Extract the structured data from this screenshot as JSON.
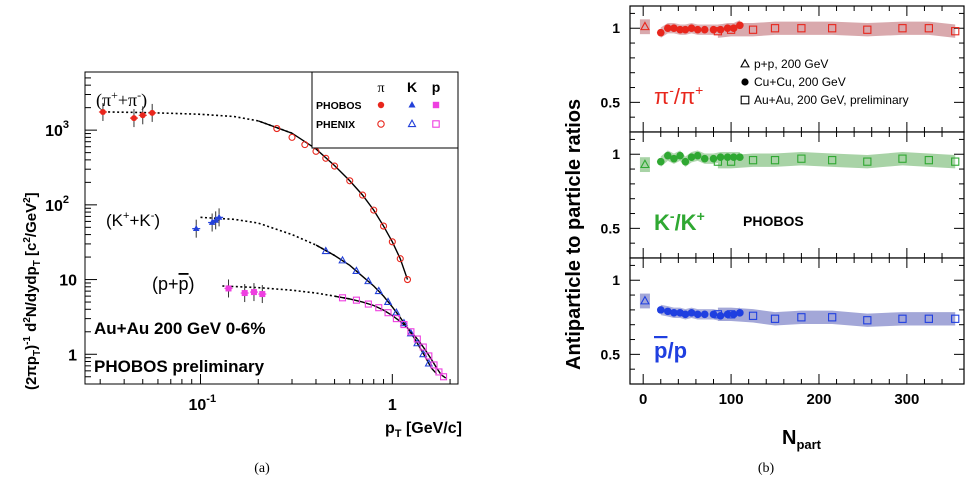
{
  "caption_a": "(a)",
  "caption_b": "(b)",
  "chart_data": [
    {
      "type": "scatter",
      "xscale": "log",
      "yscale": "log",
      "xlim": [
        0.025,
        2.2
      ],
      "ylim": [
        0.4,
        6000
      ],
      "xlabel": "p_T [GeV/c]",
      "ylabel": "(2πp_T)^-1 d²N/dydp_T [c²/GeV²]",
      "xticks": [
        "10^-1",
        "1"
      ],
      "yticks": [
        "1",
        "10",
        "10^2",
        "10^3"
      ],
      "annotations": [
        "Au+Au 200 GeV  0-6%",
        "PHOBOS preliminary"
      ],
      "curve_labels": [
        "(π⁺+π⁻)",
        "(K⁺+K⁻)",
        "(p+p̄)"
      ],
      "legend": {
        "columns": [
          "π",
          "K",
          "p"
        ],
        "rows": [
          "PHOBOS",
          "PHENIX"
        ],
        "placement": "top-right"
      },
      "colors": {
        "pion": "#e8261c",
        "kaon": "#2340d9",
        "proton": "#ee3fe0"
      },
      "series": [
        {
          "name": "PHOBOS π",
          "marker": "filled-circle",
          "color": "#e8261c",
          "points": [
            [
              0.031,
              1750
            ],
            [
              0.045,
              1450
            ],
            [
              0.05,
              1580
            ],
            [
              0.056,
              1700
            ]
          ]
        },
        {
          "name": "PHOBOS K",
          "marker": "filled-triangle",
          "color": "#2340d9",
          "points": [
            [
              0.095,
              48
            ],
            [
              0.115,
              58
            ],
            [
              0.12,
              62
            ],
            [
              0.125,
              68
            ]
          ]
        },
        {
          "name": "PHOBOS p",
          "marker": "filled-square",
          "color": "#ee3fe0",
          "points": [
            [
              0.14,
              7.6
            ],
            [
              0.17,
              6.6
            ],
            [
              0.19,
              6.8
            ],
            [
              0.21,
              6.4
            ]
          ]
        },
        {
          "name": "PHENIX π",
          "marker": "open-circle",
          "color": "#e8261c",
          "points": [
            [
              0.25,
              1050
            ],
            [
              0.3,
              800
            ],
            [
              0.35,
              640
            ],
            [
              0.4,
              520
            ],
            [
              0.45,
              420
            ],
            [
              0.5,
              330
            ],
            [
              0.6,
              210
            ],
            [
              0.7,
              135
            ],
            [
              0.8,
              85
            ],
            [
              0.9,
              52
            ],
            [
              1.0,
              32
            ],
            [
              1.1,
              19
            ],
            [
              1.2,
              10
            ]
          ]
        },
        {
          "name": "PHENIX K",
          "marker": "open-triangle",
          "color": "#2340d9",
          "points": [
            [
              0.45,
              24
            ],
            [
              0.55,
              18
            ],
            [
              0.65,
              13
            ],
            [
              0.75,
              9.5
            ],
            [
              0.85,
              7
            ],
            [
              0.95,
              5
            ],
            [
              1.05,
              3.6
            ],
            [
              1.15,
              2.6
            ],
            [
              1.25,
              1.9
            ],
            [
              1.35,
              1.4
            ],
            [
              1.45,
              1.0
            ],
            [
              1.55,
              0.75
            ]
          ]
        },
        {
          "name": "PHENIX p",
          "marker": "open-square",
          "color": "#ee3fe0",
          "points": [
            [
              0.55,
              5.7
            ],
            [
              0.65,
              5.3
            ],
            [
              0.75,
              4.7
            ],
            [
              0.85,
              4.2
            ],
            [
              0.95,
              3.6
            ],
            [
              1.05,
              3.0
            ],
            [
              1.15,
              2.5
            ],
            [
              1.25,
              2.0
            ],
            [
              1.35,
              1.6
            ],
            [
              1.45,
              1.25
            ],
            [
              1.55,
              0.95
            ],
            [
              1.65,
              0.72
            ],
            [
              1.75,
              0.58
            ],
            [
              1.85,
              0.5
            ]
          ]
        }
      ],
      "fit_curves": [
        {
          "points": [
            [
              0.033,
              1750
            ],
            [
              0.05,
              1720
            ],
            [
              0.07,
              1680
            ],
            [
              0.1,
              1630
            ],
            [
              0.15,
              1520
            ],
            [
              0.2,
              1330
            ],
            [
              0.3,
              910
            ],
            [
              0.4,
              560
            ],
            [
              0.5,
              335
            ],
            [
              0.6,
              210
            ],
            [
              0.7,
              135
            ],
            [
              0.8,
              85
            ],
            [
              0.9,
              52
            ],
            [
              1.0,
              32
            ],
            [
              1.1,
              19
            ],
            [
              1.2,
              10
            ]
          ]
        },
        {
          "points": [
            [
              0.1,
              68
            ],
            [
              0.15,
              64
            ],
            [
              0.2,
              57
            ],
            [
              0.3,
              40
            ],
            [
              0.4,
              29
            ],
            [
              0.5,
              21
            ],
            [
              0.6,
              15.5
            ],
            [
              0.7,
              11
            ],
            [
              0.8,
              8.2
            ],
            [
              0.9,
              6
            ],
            [
              1.0,
              4.3
            ],
            [
              1.1,
              3.1
            ],
            [
              1.2,
              2.25
            ],
            [
              1.3,
              1.65
            ],
            [
              1.4,
              1.2
            ],
            [
              1.5,
              0.88
            ],
            [
              1.6,
              0.65
            ],
            [
              1.7,
              0.55
            ]
          ]
        },
        {
          "points": [
            [
              0.13,
              8.2
            ],
            [
              0.2,
              7.8
            ],
            [
              0.3,
              7.2
            ],
            [
              0.4,
              6.6
            ],
            [
              0.5,
              6.0
            ],
            [
              0.6,
              5.5
            ],
            [
              0.7,
              5.0
            ],
            [
              0.8,
              4.5
            ],
            [
              0.9,
              3.9
            ],
            [
              1.0,
              3.3
            ],
            [
              1.1,
              2.75
            ],
            [
              1.2,
              2.25
            ],
            [
              1.3,
              1.8
            ],
            [
              1.4,
              1.42
            ],
            [
              1.5,
              1.1
            ],
            [
              1.6,
              0.85
            ],
            [
              1.7,
              0.66
            ],
            [
              1.8,
              0.53
            ],
            [
              1.9,
              0.48
            ]
          ]
        }
      ]
    },
    {
      "type": "scatter",
      "xlabel": "N_part",
      "ylabel": "Antiparticle to particle ratios",
      "xlim": [
        -15,
        365
      ],
      "xticks": [
        0,
        100,
        200,
        300
      ],
      "ylim": [
        0.3,
        1.15
      ],
      "yticks": [
        0.5,
        1
      ],
      "legend": [
        "p+p, 200 GeV",
        "Cu+Cu, 200 GeV",
        "Au+Au, 200 GeV, preliminary"
      ],
      "annotations": [
        "PHOBOS"
      ],
      "panels": [
        {
          "label": "π⁻/π⁺",
          "color": "#e8261c",
          "band_color": "#d9a9ad",
          "pp": [
            2,
            1.01
          ],
          "cucu": [
            [
              20,
              0.97
            ],
            [
              28,
              1.0
            ],
            [
              35,
              1.0
            ],
            [
              42,
              0.99
            ],
            [
              48,
              0.99
            ],
            [
              55,
              1.0
            ],
            [
              62,
              0.99
            ],
            [
              70,
              0.99
            ],
            [
              80,
              0.99
            ],
            [
              88,
              0.99
            ],
            [
              96,
              1.0
            ],
            [
              103,
              1.0
            ],
            [
              110,
              1.02
            ]
          ],
          "auau": [
            [
              85,
              0.98
            ],
            [
              100,
              0.99
            ],
            [
              125,
              0.99
            ],
            [
              150,
              1.0
            ],
            [
              180,
              1.0
            ],
            [
              215,
              1.0
            ],
            [
              255,
              0.99
            ],
            [
              295,
              1.0
            ],
            [
              325,
              1.0
            ],
            [
              355,
              0.98
            ]
          ]
        },
        {
          "label": "K⁻/K⁺",
          "color": "#2fa832",
          "band_color": "#a8d3a6",
          "pp": [
            2,
            0.93
          ],
          "cucu": [
            [
              20,
              0.95
            ],
            [
              28,
              0.99
            ],
            [
              35,
              0.97
            ],
            [
              42,
              0.99
            ],
            [
              48,
              0.95
            ],
            [
              55,
              0.98
            ],
            [
              62,
              0.99
            ],
            [
              70,
              0.97
            ],
            [
              80,
              0.97
            ],
            [
              88,
              0.98
            ],
            [
              96,
              0.98
            ],
            [
              103,
              0.98
            ],
            [
              110,
              0.98
            ]
          ],
          "auau": [
            [
              85,
              0.95
            ],
            [
              100,
              0.95
            ],
            [
              125,
              0.96
            ],
            [
              150,
              0.96
            ],
            [
              180,
              0.97
            ],
            [
              215,
              0.96
            ],
            [
              255,
              0.95
            ],
            [
              295,
              0.97
            ],
            [
              325,
              0.96
            ],
            [
              355,
              0.95
            ]
          ]
        },
        {
          "label": "p̄/p",
          "color": "#1f3fe0",
          "band_color": "#a3a7d8",
          "pp": [
            2,
            0.86
          ],
          "cucu": [
            [
              20,
              0.8
            ],
            [
              28,
              0.79
            ],
            [
              35,
              0.78
            ],
            [
              42,
              0.78
            ],
            [
              48,
              0.77
            ],
            [
              55,
              0.78
            ],
            [
              62,
              0.77
            ],
            [
              70,
              0.77
            ],
            [
              80,
              0.77
            ],
            [
              88,
              0.76
            ],
            [
              96,
              0.77
            ],
            [
              103,
              0.77
            ],
            [
              110,
              0.78
            ]
          ],
          "auau": [
            [
              85,
              0.77
            ],
            [
              100,
              0.77
            ],
            [
              125,
              0.76
            ],
            [
              150,
              0.74
            ],
            [
              180,
              0.75
            ],
            [
              215,
              0.75
            ],
            [
              255,
              0.73
            ],
            [
              295,
              0.74
            ],
            [
              325,
              0.74
            ],
            [
              355,
              0.74
            ]
          ]
        }
      ]
    }
  ]
}
